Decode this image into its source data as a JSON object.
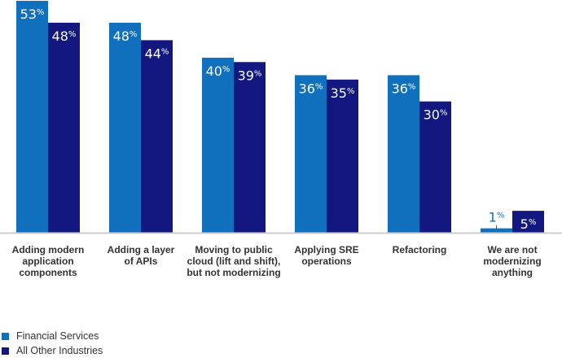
{
  "chart_data": {
    "type": "bar",
    "categories": [
      [
        "Adding modern",
        "application",
        "components"
      ],
      [
        "Adding a layer",
        "of APIs"
      ],
      [
        "Moving to public",
        "cloud (lift and shift),",
        "but not modernizing"
      ],
      [
        "Applying SRE",
        "operations"
      ],
      [
        "Refactoring"
      ],
      [
        "We are not",
        "modernizing",
        "anything"
      ]
    ],
    "series": [
      {
        "name": "Financial Services",
        "values": [
          53,
          48,
          40,
          36,
          36,
          1
        ],
        "color": "#1170BE"
      },
      {
        "name": "All Other Industries",
        "values": [
          48,
          44,
          39,
          35,
          30,
          5
        ],
        "color": "#12187F"
      }
    ],
    "value_suffix": "%",
    "ylim": [
      0,
      53
    ],
    "grid": false,
    "legend_placement": "bottom-left",
    "axis_color": "#cccccc"
  }
}
